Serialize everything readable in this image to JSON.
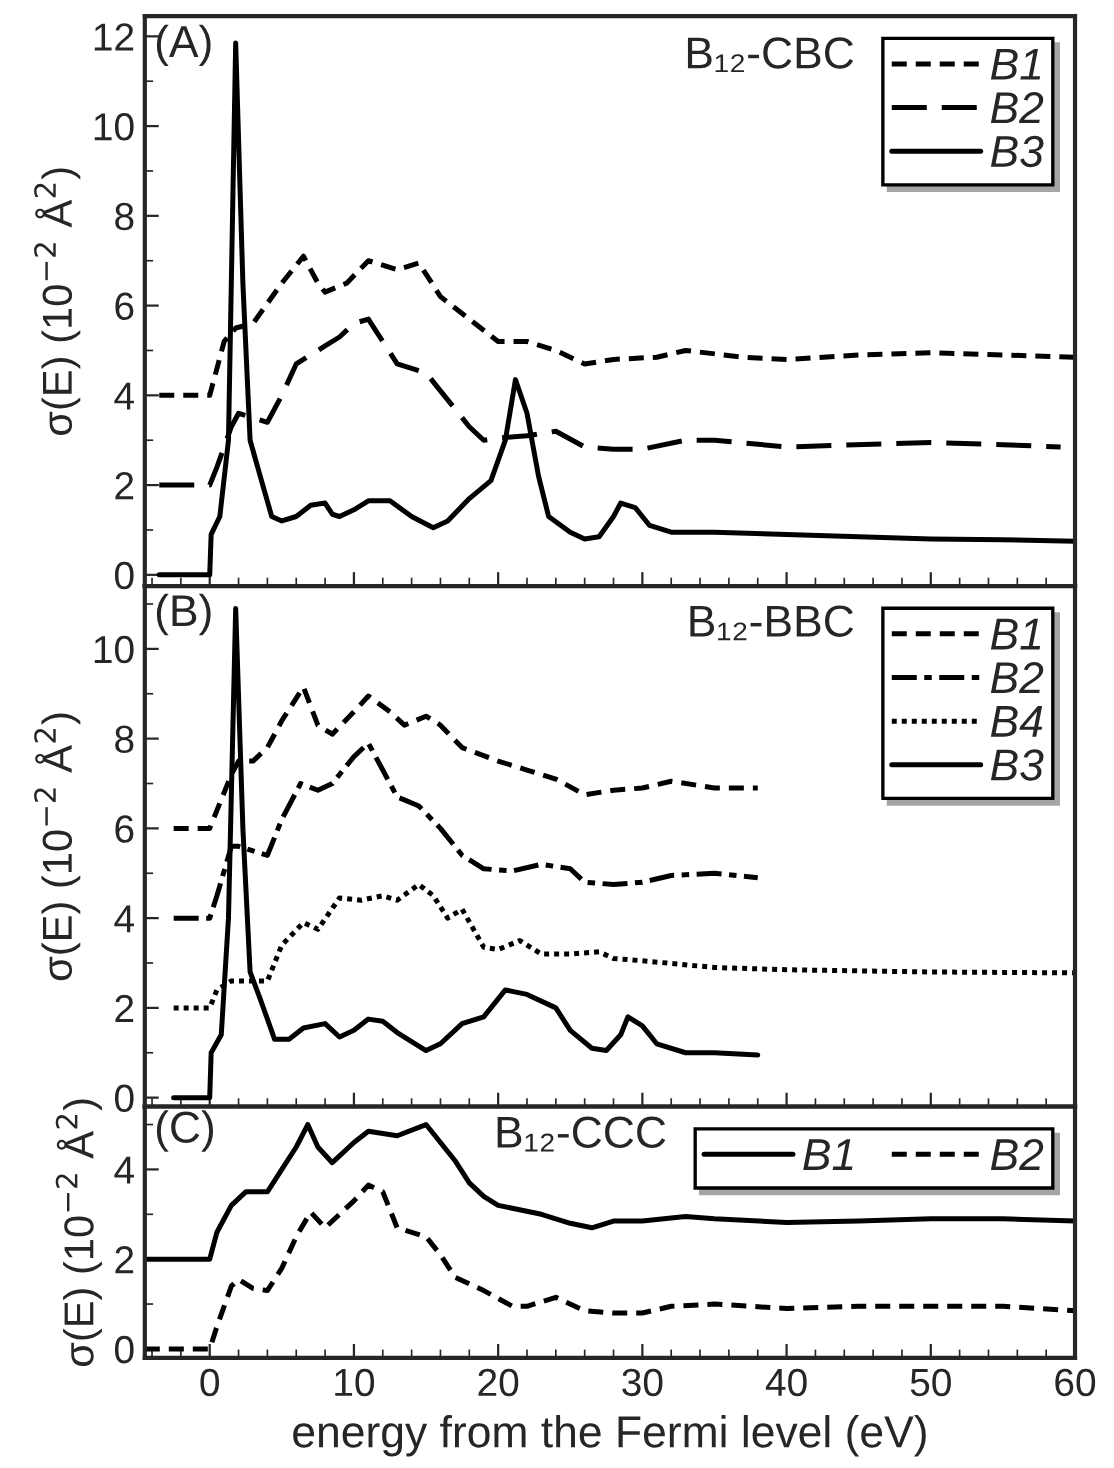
{
  "chart_data": [
    {
      "type": "line",
      "title": "B₁₂-CBC",
      "annotations": [
        "(A)"
      ],
      "ylabel": "σ(E) (10$^{−2}$ Å$^{2}$)",
      "xlim": [
        -4.5,
        60
      ],
      "xticks": [
        0,
        10,
        20,
        30,
        40,
        50,
        60
      ],
      "ylim": [
        -0.25,
        12.45
      ],
      "yticks": [
        0,
        2,
        4,
        6,
        8,
        10,
        12
      ],
      "tick_labels": "y",
      "legend": "top right",
      "grid": false,
      "series": [
        {
          "name": "B1",
          "color": "#000000",
          "line_style": "dashed",
          "x": [
            -3.5,
            0,
            1,
            1.8,
            3,
            5,
            6.5,
            7.5,
            8,
            9.5,
            11,
            13,
            14.5,
            16,
            18,
            20,
            22,
            24,
            26,
            28,
            31,
            33,
            37,
            40,
            45,
            50,
            55,
            60
          ],
          "values": [
            4.0,
            4.0,
            5.2,
            5.5,
            5.6,
            6.5,
            7.1,
            6.5,
            6.3,
            6.5,
            7.0,
            6.8,
            6.95,
            6.2,
            5.7,
            5.2,
            5.2,
            5.0,
            4.7,
            4.8,
            4.85,
            5.0,
            4.85,
            4.8,
            4.9,
            4.95,
            4.9,
            4.85
          ]
        },
        {
          "name": "B2",
          "color": "#000000",
          "line_style": "longdashed",
          "x": [
            -3.5,
            0,
            0.5,
            1.5,
            2,
            3,
            4,
            5,
            6,
            7,
            8,
            9,
            10,
            11,
            12,
            13,
            15,
            16,
            17,
            18,
            19,
            20,
            22,
            24,
            26,
            28,
            30,
            33,
            35,
            40,
            50,
            55,
            59
          ],
          "values": [
            2.0,
            2.0,
            2.4,
            3.3,
            3.6,
            3.5,
            3.4,
            4.0,
            4.7,
            4.9,
            5.1,
            5.3,
            5.6,
            5.7,
            5.2,
            4.7,
            4.5,
            4.1,
            3.7,
            3.3,
            3.0,
            3.05,
            3.1,
            3.2,
            2.85,
            2.8,
            2.8,
            3.0,
            3.0,
            2.85,
            2.95,
            2.9,
            2.85
          ]
        },
        {
          "name": "B3",
          "color": "#000000",
          "line_style": "solid",
          "x": [
            -3.5,
            0,
            0.1,
            0.7,
            1.3,
            1.8,
            2.3,
            2.8,
            3.5,
            4.3,
            5,
            6,
            7,
            8,
            8.5,
            9,
            10,
            11,
            12.5,
            14,
            15.5,
            16.5,
            18,
            19.5,
            20.5,
            21.2,
            22,
            22.8,
            23.5,
            25,
            26,
            27,
            28,
            28.5,
            29.5,
            30.5,
            32,
            35,
            40,
            45,
            50,
            55,
            60
          ],
          "values": [
            0,
            0,
            0.9,
            1.3,
            3.0,
            11.85,
            6.5,
            3.0,
            2.2,
            1.3,
            1.2,
            1.3,
            1.55,
            1.6,
            1.35,
            1.3,
            1.45,
            1.65,
            1.65,
            1.3,
            1.05,
            1.2,
            1.7,
            2.1,
            3.0,
            4.35,
            3.6,
            2.2,
            1.3,
            0.95,
            0.8,
            0.85,
            1.3,
            1.6,
            1.5,
            1.1,
            0.95,
            0.95,
            0.9,
            0.85,
            0.8,
            0.78,
            0.75
          ]
        }
      ]
    },
    {
      "type": "line",
      "title": "B₁₂-BBC",
      "annotations": [
        "(B)"
      ],
      "ylabel": "σ(E) (10$^{−2}$ Å$^{2}$)",
      "xlim": [
        -4.5,
        60
      ],
      "xticks": [
        0,
        10,
        20,
        30,
        40,
        50,
        60
      ],
      "ylim": [
        -0.2,
        11.4
      ],
      "yticks": [
        0,
        2,
        4,
        6,
        8,
        10
      ],
      "tick_labels": "y",
      "legend": "top right",
      "grid": false,
      "series": [
        {
          "name": "B1",
          "color": "#000000",
          "line_style": "dashed",
          "x": [
            -2.5,
            0,
            0.5,
            1.5,
            2,
            3,
            4,
            5,
            6.5,
            7.5,
            8.5,
            10,
            11,
            12.5,
            13.5,
            15,
            16,
            17.5,
            20,
            22,
            24,
            26,
            28,
            30,
            32,
            35,
            38
          ],
          "values": [
            6.0,
            6.0,
            6.4,
            7.2,
            7.5,
            7.5,
            7.8,
            8.4,
            9.15,
            8.3,
            8.1,
            8.6,
            8.95,
            8.6,
            8.3,
            8.5,
            8.3,
            7.8,
            7.5,
            7.3,
            7.1,
            6.75,
            6.85,
            6.9,
            7.05,
            6.9,
            6.9
          ]
        },
        {
          "name": "B2",
          "color": "#000000",
          "line_style": "dashdot",
          "x": [
            -2.5,
            0,
            0.5,
            1.5,
            2,
            3,
            4,
            5,
            6.3,
            7.5,
            8.5,
            10,
            11,
            12,
            13,
            14.5,
            16,
            17.5,
            19,
            21,
            23,
            25,
            26,
            28,
            30,
            32,
            35,
            38
          ],
          "values": [
            4.0,
            4.0,
            4.5,
            5.6,
            5.6,
            5.5,
            5.4,
            6.2,
            7.0,
            6.85,
            7.0,
            7.6,
            7.9,
            7.3,
            6.7,
            6.5,
            6.0,
            5.4,
            5.1,
            5.05,
            5.2,
            5.1,
            4.8,
            4.75,
            4.8,
            4.95,
            5.0,
            4.9
          ]
        },
        {
          "name": "B4",
          "color": "#000000",
          "line_style": "dotted",
          "x": [
            -2.5,
            0,
            0.5,
            1.5,
            3,
            4,
            5,
            6.5,
            7.5,
            9,
            10.5,
            12,
            13,
            14.5,
            15.5,
            16.5,
            17.5,
            19,
            20,
            21.5,
            23,
            25,
            27,
            28,
            30,
            35,
            40,
            50,
            60
          ],
          "values": [
            2.0,
            2.0,
            2.4,
            2.6,
            2.6,
            2.6,
            3.4,
            3.9,
            3.75,
            4.45,
            4.4,
            4.5,
            4.4,
            4.75,
            4.5,
            4.0,
            4.2,
            3.35,
            3.3,
            3.5,
            3.2,
            3.2,
            3.25,
            3.1,
            3.05,
            2.9,
            2.85,
            2.8,
            2.78
          ]
        },
        {
          "name": "B3",
          "color": "#000000",
          "line_style": "solid",
          "x": [
            -2.5,
            0,
            0.1,
            0.8,
            1.3,
            1.8,
            2.3,
            2.8,
            3.5,
            4.5,
            5.5,
            6.5,
            8,
            9,
            10,
            11,
            12,
            13,
            15,
            16,
            17.5,
            19,
            20.5,
            22,
            24,
            25,
            26.5,
            27.5,
            28.5,
            29,
            30,
            31,
            33,
            35,
            38
          ],
          "values": [
            0,
            0,
            1.0,
            1.4,
            4.0,
            10.9,
            6.0,
            2.8,
            2.2,
            1.3,
            1.3,
            1.55,
            1.65,
            1.35,
            1.5,
            1.75,
            1.7,
            1.45,
            1.05,
            1.2,
            1.65,
            1.8,
            2.4,
            2.3,
            2.0,
            1.5,
            1.1,
            1.05,
            1.4,
            1.8,
            1.6,
            1.2,
            1.0,
            1.0,
            0.95
          ]
        }
      ]
    },
    {
      "type": "line",
      "title": "B₁₂-CCC",
      "annotations": [
        "(C)"
      ],
      "xlabel": "energy from the Fermi level (eV)",
      "ylabel": "σ(E) (10$^{−2}$ Å$^{2}$)",
      "xlim": [
        -4.5,
        60
      ],
      "xticks": [
        0,
        10,
        20,
        30,
        40,
        50,
        60
      ],
      "ylim": [
        -0.2,
        5.4
      ],
      "yticks": [
        0,
        2,
        4
      ],
      "legend": "top right",
      "grid": false,
      "series": [
        {
          "name": "B1",
          "color": "#000000",
          "line_style": "solid",
          "x": [
            -4.5,
            0,
            0.5,
            1.5,
            2.5,
            4,
            5,
            6,
            6.8,
            7.5,
            8.5,
            10,
            11,
            13,
            15,
            16,
            17,
            18,
            19,
            20,
            23,
            25,
            26.5,
            28,
            30,
            33,
            35,
            40,
            45,
            50,
            55,
            60
          ],
          "values": [
            2.0,
            2.0,
            2.6,
            3.2,
            3.5,
            3.5,
            4.0,
            4.5,
            5.0,
            4.5,
            4.15,
            4.6,
            4.85,
            4.75,
            5.0,
            4.6,
            4.2,
            3.7,
            3.4,
            3.2,
            3.0,
            2.8,
            2.7,
            2.85,
            2.85,
            2.95,
            2.9,
            2.82,
            2.85,
            2.9,
            2.9,
            2.85
          ]
        },
        {
          "name": "B2",
          "color": "#000000",
          "line_style": "dashed",
          "x": [
            -4.5,
            0,
            0.5,
            1.5,
            2,
            3,
            4,
            5,
            6,
            7,
            8,
            9,
            10,
            11,
            12,
            13,
            15,
            16,
            17,
            19,
            21,
            22,
            24,
            26,
            28,
            30,
            32,
            35,
            40,
            45,
            50,
            55,
            60
          ],
          "values": [
            0,
            0,
            0.5,
            1.4,
            1.55,
            1.35,
            1.3,
            1.8,
            2.5,
            3.05,
            2.7,
            3.0,
            3.3,
            3.65,
            3.5,
            2.7,
            2.5,
            2.1,
            1.6,
            1.3,
            0.95,
            0.95,
            1.15,
            0.85,
            0.8,
            0.8,
            0.95,
            1.0,
            0.9,
            0.95,
            0.95,
            0.95,
            0.85
          ]
        }
      ]
    }
  ]
}
